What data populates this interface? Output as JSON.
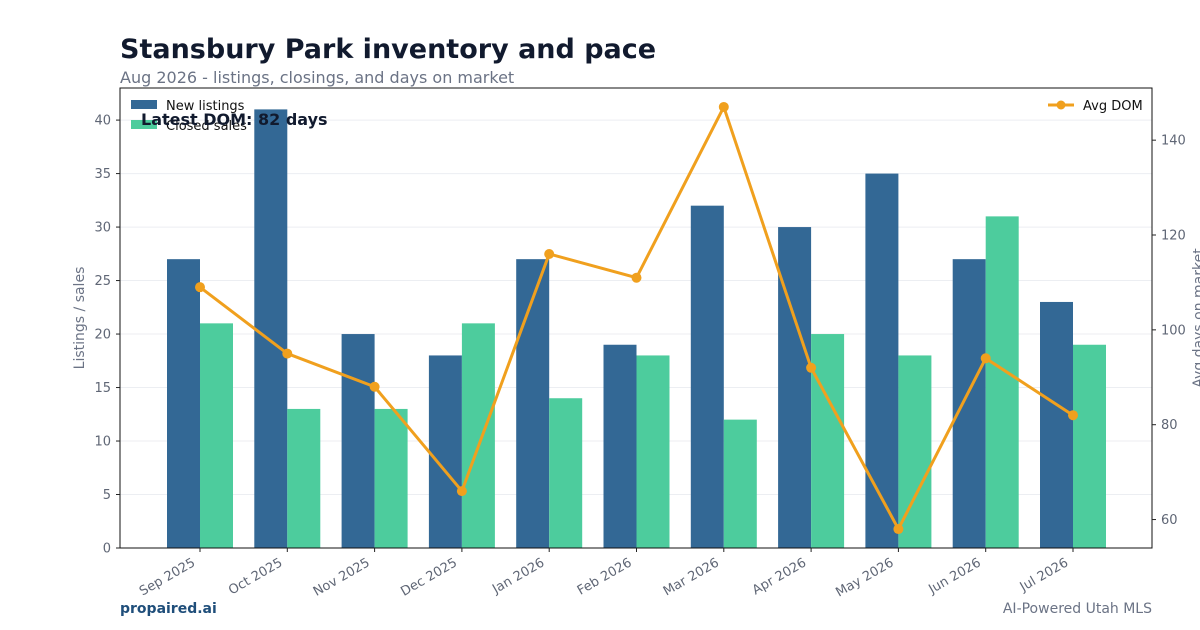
{
  "header": {
    "title": "Stansbury Park inventory and pace",
    "subtitle": "Aug 2026 - listings, closings, and days on market"
  },
  "footer": {
    "brand": "propaired.ai",
    "tagline": "AI-Powered Utah MLS"
  },
  "colors": {
    "new_listings": "#336895",
    "closed_sales": "#4dcc9d",
    "avg_dom": "#f0a01e"
  },
  "chart_data": {
    "type": "bar",
    "categories": [
      "Sep 2025",
      "Oct 2025",
      "Nov 2025",
      "Dec 2025",
      "Jan 2026",
      "Feb 2026",
      "Mar 2026",
      "Apr 2026",
      "May 2026",
      "Jun 2026",
      "Jul 2026"
    ],
    "series": [
      {
        "name": "New listings",
        "type": "bar",
        "axis": "left",
        "values": [
          27,
          41,
          20,
          18,
          27,
          19,
          32,
          30,
          35,
          27,
          23
        ]
      },
      {
        "name": "Closed sales",
        "type": "bar",
        "axis": "left",
        "values": [
          21,
          13,
          13,
          21,
          14,
          18,
          12,
          20,
          18,
          31,
          19
        ]
      },
      {
        "name": "Avg DOM",
        "type": "line",
        "axis": "right",
        "values": [
          109,
          95,
          88,
          66,
          116,
          111,
          147,
          92,
          58,
          94,
          82
        ]
      }
    ],
    "ylabel": "Listings / sales",
    "y2label": "Avg days on market",
    "ylim": [
      0,
      43
    ],
    "y2lim": [
      54,
      151
    ],
    "yticks": [
      0,
      5,
      10,
      15,
      20,
      25,
      30,
      35,
      40
    ],
    "y2ticks": [
      60,
      80,
      100,
      120,
      140
    ],
    "annotation": "Latest DOM: 82 days",
    "legend_left": "top-left",
    "legend_right": "top-right",
    "grid": true
  }
}
